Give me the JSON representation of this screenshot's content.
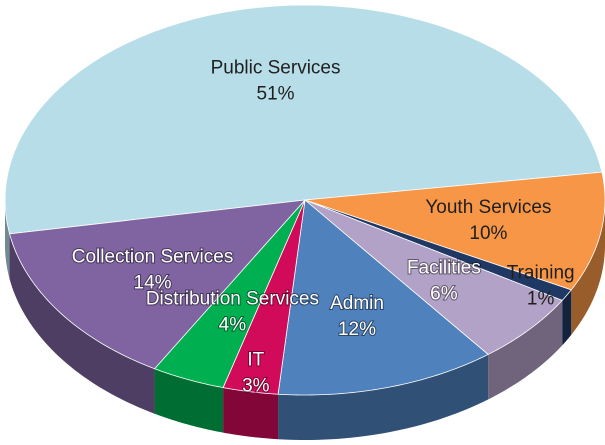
{
  "chart_data": {
    "type": "pie3d",
    "categories": [
      "Public Services",
      "Youth Services",
      "Training",
      "Facilities",
      "Admin",
      "IT",
      "Distribution Services",
      "Collection Services"
    ],
    "values": [
      51,
      10,
      1,
      6,
      12,
      3,
      4,
      14
    ],
    "value_labels": [
      "51%",
      "10%",
      "1%",
      "6%",
      "12%",
      "3%",
      "4%",
      "14%"
    ],
    "colors": [
      "#b7dde8",
      "#f79646",
      "#1f3864",
      "#b3a2c7",
      "#4f81bd",
      "#d10a5a",
      "#00b050",
      "#8064a2"
    ],
    "label_colors": [
      "#1f1f1f",
      "#1f1f1f",
      "#1f1f1f",
      "#ffffff",
      "#ffffff",
      "#ffffff",
      "#ffffff",
      "#ffffff"
    ]
  }
}
